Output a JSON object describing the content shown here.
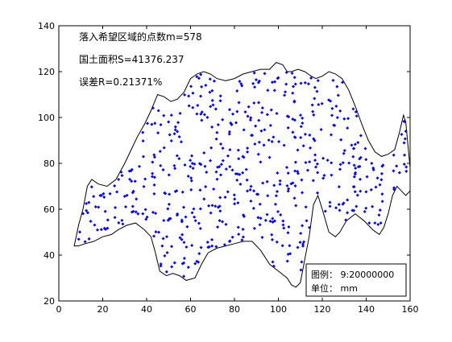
{
  "chart_data": {
    "type": "scatter",
    "title": "",
    "xlabel": "",
    "ylabel": "",
    "xlim": [
      0,
      160
    ],
    "ylim": [
      20,
      140
    ],
    "x_ticks": [
      "0",
      "20",
      "40",
      "60",
      "80",
      "100",
      "120",
      "140",
      "160"
    ],
    "y_ticks": [
      "20",
      "40",
      "60",
      "80",
      "100",
      "120",
      "140"
    ],
    "grid": false,
    "annotations": [
      "落入希望区域的点数m=578",
      "国土面积S=41376.237",
      "误差R=0.21371%"
    ],
    "legend": {
      "placement": "bottom-right",
      "lines": [
        "图例：  9:20000000",
        "单位：  mm"
      ]
    },
    "boundary": {
      "color": "#000000",
      "upper": [
        [
          7,
          44
        ],
        [
          9,
          53
        ],
        [
          11,
          60
        ],
        [
          13,
          70
        ],
        [
          15,
          73
        ],
        [
          18,
          71
        ],
        [
          22,
          70
        ],
        [
          26,
          73
        ],
        [
          30,
          80
        ],
        [
          33,
          86
        ],
        [
          36,
          92
        ],
        [
          39,
          97
        ],
        [
          42,
          103
        ],
        [
          45,
          110
        ],
        [
          48,
          109
        ],
        [
          51,
          107
        ],
        [
          54,
          108
        ],
        [
          57,
          111
        ],
        [
          60,
          117
        ],
        [
          63,
          119
        ],
        [
          66,
          120
        ],
        [
          69,
          119
        ],
        [
          72,
          117
        ],
        [
          76,
          116
        ],
        [
          80,
          117
        ],
        [
          84,
          119
        ],
        [
          88,
          120
        ],
        [
          92,
          121
        ],
        [
          96,
          121
        ],
        [
          99,
          124
        ],
        [
          102,
          123
        ],
        [
          104,
          120
        ],
        [
          106,
          120
        ],
        [
          109,
          121
        ],
        [
          112,
          120
        ],
        [
          115,
          118
        ],
        [
          117,
          117
        ],
        [
          120,
          118
        ],
        [
          123,
          120
        ],
        [
          126,
          119
        ],
        [
          129,
          117
        ],
        [
          132,
          112
        ],
        [
          135,
          105
        ],
        [
          138,
          97
        ],
        [
          141,
          90
        ],
        [
          144,
          85
        ],
        [
          147,
          83
        ],
        [
          150,
          84
        ],
        [
          153,
          86
        ],
        [
          155,
          93
        ],
        [
          157,
          101
        ],
        [
          158,
          98
        ],
        [
          159,
          88
        ],
        [
          160,
          78
        ],
        [
          160,
          68
        ]
      ],
      "lower": [
        [
          160,
          68
        ],
        [
          158,
          66
        ],
        [
          156,
          68
        ],
        [
          154,
          70
        ],
        [
          152,
          66
        ],
        [
          150,
          58
        ],
        [
          148,
          52
        ],
        [
          146,
          49
        ],
        [
          143,
          51
        ],
        [
          139,
          55
        ],
        [
          135,
          58
        ],
        [
          131,
          55
        ],
        [
          128,
          50
        ],
        [
          126,
          48
        ],
        [
          123,
          50
        ],
        [
          120,
          60
        ],
        [
          118,
          66
        ],
        [
          116,
          62
        ],
        [
          114,
          48
        ],
        [
          112,
          38
        ],
        [
          110,
          28
        ],
        [
          108,
          26
        ],
        [
          106,
          27
        ],
        [
          104,
          30
        ],
        [
          100,
          33
        ],
        [
          96,
          36
        ],
        [
          92,
          42
        ],
        [
          88,
          46
        ],
        [
          84,
          46
        ],
        [
          80,
          45
        ],
        [
          76,
          44
        ],
        [
          72,
          43
        ],
        [
          68,
          41
        ],
        [
          65,
          36
        ],
        [
          62,
          30
        ],
        [
          58,
          29
        ],
        [
          55,
          31
        ],
        [
          52,
          32
        ],
        [
          49,
          31
        ],
        [
          46,
          33
        ],
        [
          44,
          41
        ],
        [
          42,
          48
        ],
        [
          39,
          51
        ],
        [
          35,
          54
        ],
        [
          31,
          53
        ],
        [
          27,
          51
        ],
        [
          24,
          49
        ],
        [
          20,
          48
        ],
        [
          16,
          46
        ],
        [
          12,
          45
        ],
        [
          9,
          44
        ],
        [
          7,
          44
        ]
      ]
    },
    "series": [
      {
        "marker": "diamond",
        "color": "#0000ff",
        "count": 578
      }
    ]
  }
}
